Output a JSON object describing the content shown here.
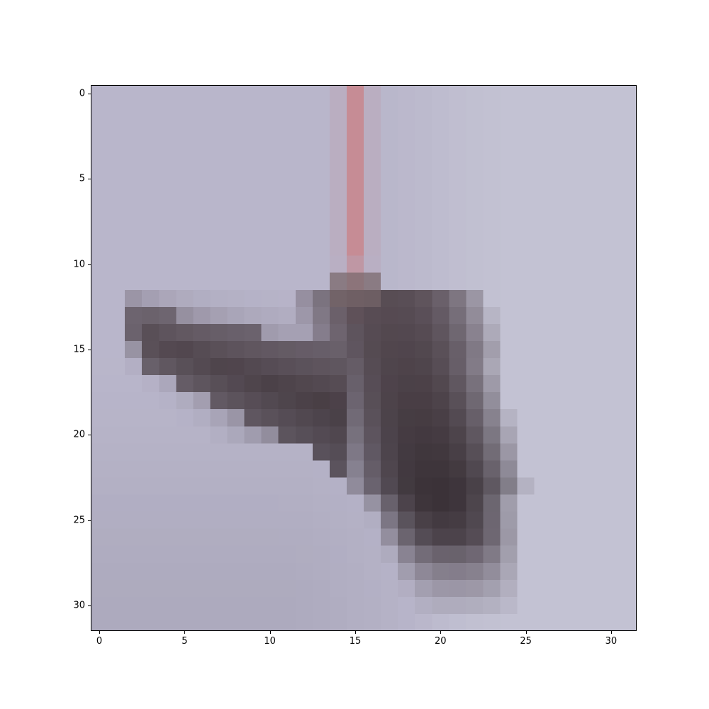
{
  "chart_data": {
    "type": "heatmap",
    "title": "",
    "xlabel": "",
    "ylabel": "",
    "xlim": [
      -0.5,
      31.5
    ],
    "ylim": [
      31.5,
      -0.5
    ],
    "grid": false,
    "colormap": "rgb-image",
    "x_ticks": [
      "0",
      "5",
      "10",
      "15",
      "20",
      "25",
      "30"
    ],
    "y_ticks": [
      "0",
      "5",
      "10",
      "15",
      "20",
      "25",
      "30"
    ],
    "x_tick_values": [
      0,
      5,
      10,
      15,
      20,
      25,
      30
    ],
    "y_tick_values": [
      0,
      5,
      10,
      15,
      20,
      25,
      30
    ],
    "image_description_palette": {
      "background_light": "#c7c7d6",
      "background_mid": "#b9b6cb",
      "background_lower_left": "#a8a5b8",
      "pole_pink": "#c7878f",
      "pole_mauve": "#b8a0b0",
      "dark_body": "#3b3238",
      "dark_mid": "#5b4f57",
      "wing_gray": "#746b78"
    }
  }
}
